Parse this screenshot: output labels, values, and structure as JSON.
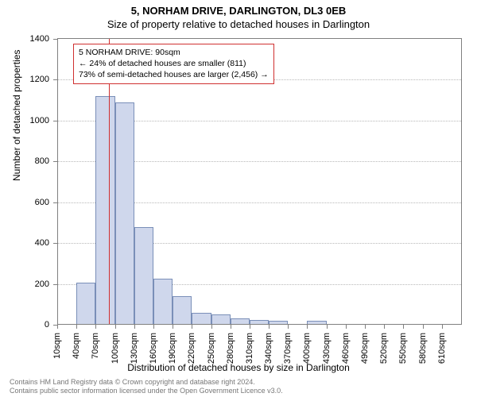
{
  "header": {
    "address": "5, NORHAM DRIVE, DARLINGTON, DL3 0EB",
    "subtitle": "Size of property relative to detached houses in Darlington"
  },
  "chart": {
    "type": "histogram",
    "ylabel": "Number of detached properties",
    "xlabel": "Distribution of detached houses by size in Darlington",
    "ylim": [
      0,
      1400
    ],
    "ytick_step": 200,
    "yticks": [
      0,
      200,
      400,
      600,
      800,
      1000,
      1200,
      1400
    ],
    "xticks": [
      "10sqm",
      "40sqm",
      "70sqm",
      "100sqm",
      "130sqm",
      "160sqm",
      "190sqm",
      "220sqm",
      "250sqm",
      "280sqm",
      "310sqm",
      "340sqm",
      "370sqm",
      "400sqm",
      "430sqm",
      "460sqm",
      "490sqm",
      "520sqm",
      "550sqm",
      "580sqm",
      "610sqm"
    ],
    "x_range": [
      10,
      640
    ],
    "bars": [
      {
        "x0": 10,
        "x1": 40,
        "v": 0
      },
      {
        "x0": 40,
        "x1": 70,
        "v": 205
      },
      {
        "x0": 70,
        "x1": 100,
        "v": 1120
      },
      {
        "x0": 100,
        "x1": 130,
        "v": 1090
      },
      {
        "x0": 130,
        "x1": 160,
        "v": 480
      },
      {
        "x0": 160,
        "x1": 190,
        "v": 225
      },
      {
        "x0": 190,
        "x1": 220,
        "v": 140
      },
      {
        "x0": 220,
        "x1": 250,
        "v": 60
      },
      {
        "x0": 250,
        "x1": 280,
        "v": 50
      },
      {
        "x0": 280,
        "x1": 310,
        "v": 30
      },
      {
        "x0": 310,
        "x1": 340,
        "v": 25
      },
      {
        "x0": 340,
        "x1": 370,
        "v": 20
      },
      {
        "x0": 370,
        "x1": 400,
        "v": 0
      },
      {
        "x0": 400,
        "x1": 430,
        "v": 20
      },
      {
        "x0": 430,
        "x1": 460,
        "v": 0
      },
      {
        "x0": 460,
        "x1": 490,
        "v": 0
      },
      {
        "x0": 490,
        "x1": 520,
        "v": 0
      },
      {
        "x0": 520,
        "x1": 550,
        "v": 0
      },
      {
        "x0": 550,
        "x1": 580,
        "v": 0
      },
      {
        "x0": 580,
        "x1": 610,
        "v": 0
      },
      {
        "x0": 610,
        "x1": 640,
        "v": 0
      }
    ],
    "bar_fill": "#cfd7ec",
    "bar_stroke": "#7a8fb8",
    "grid_color": "#b8b8b8",
    "axis_color": "#808080",
    "background_color": "#ffffff",
    "marker": {
      "x": 90,
      "color": "#d03030"
    },
    "annotation": {
      "line1": "5 NORHAM DRIVE: 90sqm",
      "line2": "← 24% of detached houses are smaller (811)",
      "line3": "73% of semi-detached houses are larger (2,456) →",
      "border_color": "#d03030",
      "fontsize": 10.5
    },
    "label_fontsize": 12,
    "tick_fontsize": 11
  },
  "footer": {
    "line1": "Contains HM Land Registry data © Crown copyright and database right 2024.",
    "line2": "Contains public sector information licensed under the Open Government Licence v3.0."
  }
}
